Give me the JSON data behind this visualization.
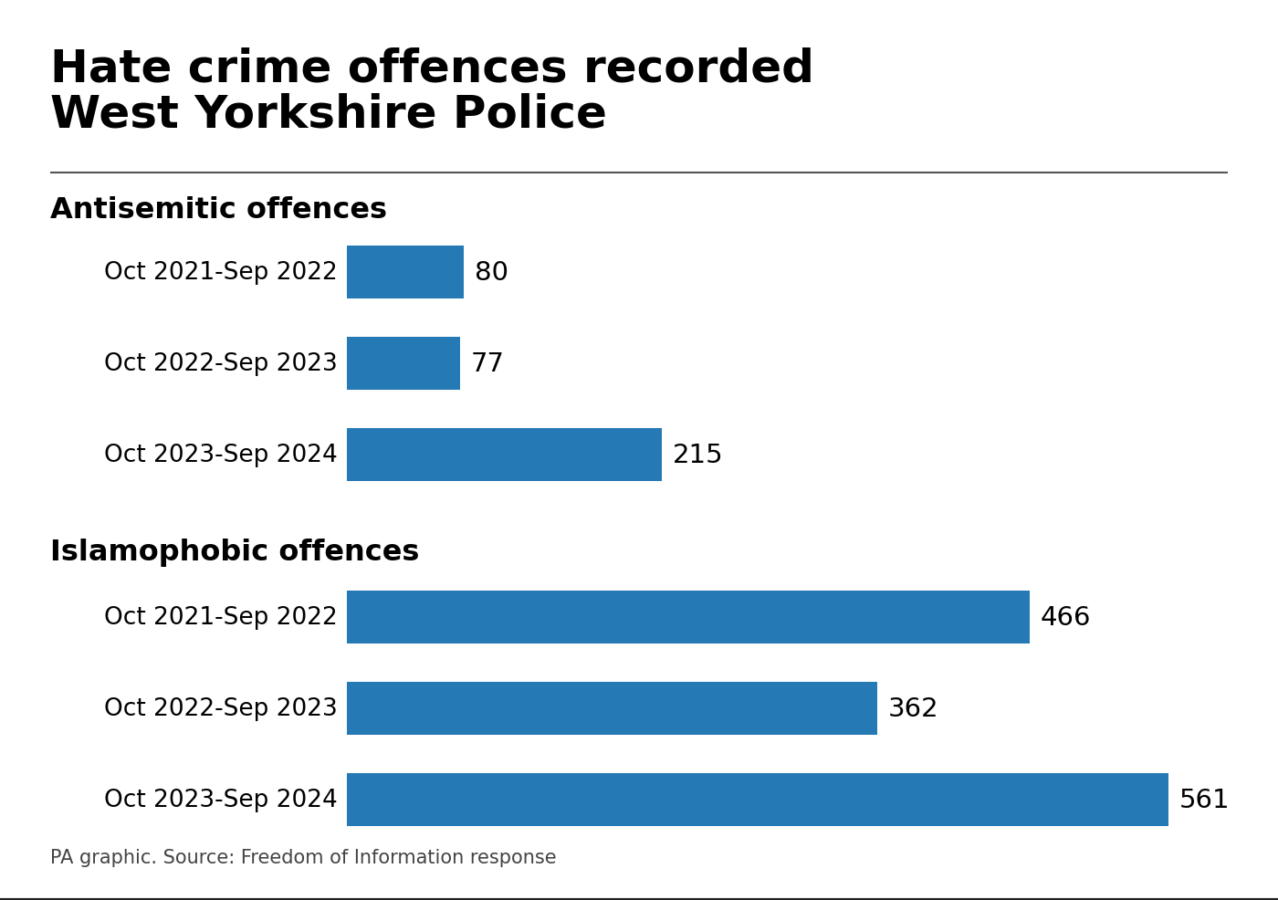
{
  "title_line1": "Hate crime offences recorded",
  "title_line2": "West Yorkshire Police",
  "section1_label": "Antisemitic offences",
  "section2_label": "Islamophobic offences",
  "antisemitic_labels": [
    "Oct 2021-Sep 2022",
    "Oct 2022-Sep 2023",
    "Oct 2023-Sep 2024"
  ],
  "islamophobic_labels": [
    "Oct 2021-Sep 2022",
    "Oct 2022-Sep 2023",
    "Oct 2023-Sep 2024"
  ],
  "antisemitic_values": [
    80,
    77,
    215
  ],
  "islamophobic_values": [
    466,
    362,
    561
  ],
  "bar_color": "#2579b5",
  "background_color": "#ffffff",
  "text_color": "#000000",
  "title_fontsize": 36,
  "label_fontsize": 19,
  "section_fontsize": 23,
  "value_fontsize": 21,
  "source_text": "PA graphic. Source: Freedom of Information response",
  "source_fontsize": 15,
  "source_color": "#444444",
  "line_color": "#555555",
  "xlim_max": 620
}
